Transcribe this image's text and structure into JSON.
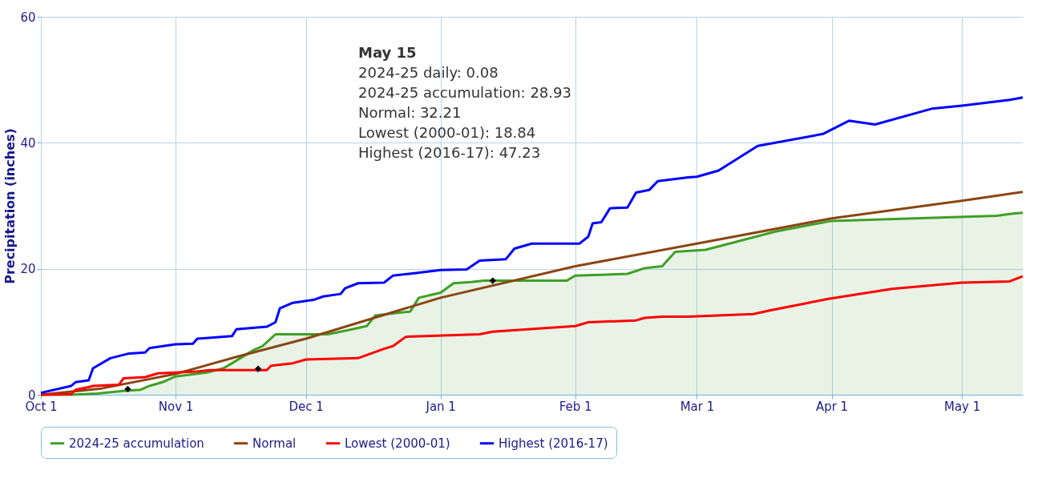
{
  "chart_data": {
    "type": "line",
    "ylabel": "Precipitation (inches)",
    "xlim": [
      "2024-10-01",
      "2025-05-15"
    ],
    "xticks": [
      {
        "value": "2024-10-01",
        "label": "Oct 1"
      },
      {
        "value": "2024-11-01",
        "label": "Nov 1"
      },
      {
        "value": "2024-12-01",
        "label": "Dec 1"
      },
      {
        "value": "2025-01-01",
        "label": "Jan 1"
      },
      {
        "value": "2025-02-01",
        "label": "Feb 1"
      },
      {
        "value": "2025-03-01",
        "label": "Mar 1"
      },
      {
        "value": "2025-04-01",
        "label": "Apr 1"
      },
      {
        "value": "2025-05-01",
        "label": "May 1"
      }
    ],
    "ylim": [
      0,
      60
    ],
    "yticks": [
      0,
      20,
      40,
      60
    ],
    "grid": true,
    "legend": "bottom",
    "marker": "none",
    "annotations": [
      "May 15",
      "2024-25 daily: 0.08",
      "2024-25 accumulation: 28.93",
      "Normal: 32.21",
      "Lowest (2000-01): 18.84",
      "Highest (2016-17): 47.23"
    ],
    "series": [
      {
        "name": "2024-25 accumulation",
        "type": "area",
        "color": "#3f9f26",
        "x": [
          "2024-10-01",
          "2024-10-08",
          "2024-10-14",
          "2024-10-20",
          "2024-10-24",
          "2024-10-26",
          "2024-10-29",
          "2024-11-01",
          "2024-11-08",
          "2024-11-12",
          "2024-11-14",
          "2024-11-19",
          "2024-11-21",
          "2024-11-24",
          "2024-12-06",
          "2024-12-11",
          "2024-12-15",
          "2024-12-17",
          "2024-12-25",
          "2024-12-27",
          "2025-01-01",
          "2025-01-04",
          "2025-01-08",
          "2025-01-11",
          "2025-01-30",
          "2025-02-01",
          "2025-02-13",
          "2025-02-17",
          "2025-02-21",
          "2025-02-24",
          "2025-03-03",
          "2025-03-19",
          "2025-04-01",
          "2025-05-09",
          "2025-05-12",
          "2025-05-15"
        ],
        "values": [
          0,
          0,
          0.2,
          0.6,
          0.8,
          1.4,
          2.0,
          2.9,
          3.5,
          4.2,
          5.0,
          7.1,
          7.7,
          9.6,
          9.6,
          10.3,
          10.9,
          12.6,
          13.2,
          15.4,
          16.2,
          17.7,
          17.9,
          18.1,
          18.1,
          18.9,
          19.2,
          20.1,
          20.4,
          22.7,
          23.0,
          25.9,
          27.6,
          28.4,
          28.7,
          28.9
        ]
      },
      {
        "name": "Normal",
        "color": "#8b4513",
        "x": [
          "2024-10-01",
          "2024-10-15",
          "2024-11-01",
          "2024-11-15",
          "2024-12-01",
          "2025-01-01",
          "2025-02-01",
          "2025-03-01",
          "2025-04-01",
          "2025-05-01",
          "2025-05-15"
        ],
        "values": [
          0,
          1.0,
          3.3,
          6.0,
          8.9,
          15.4,
          20.4,
          24.0,
          28.0,
          30.8,
          32.2
        ]
      },
      {
        "name": "Lowest (2000-01)",
        "color": "#ff0000",
        "x": [
          "2024-10-01",
          "2024-10-08",
          "2024-10-09",
          "2024-10-12",
          "2024-10-13",
          "2024-10-19",
          "2024-10-20",
          "2024-10-25",
          "2024-10-28",
          "2024-11-06",
          "2024-11-09",
          "2024-11-22",
          "2024-11-23",
          "2024-11-28",
          "2024-12-01",
          "2024-12-13",
          "2024-12-19",
          "2024-12-21",
          "2024-12-24",
          "2025-01-10",
          "2025-01-13",
          "2025-02-01",
          "2025-02-04",
          "2025-02-15",
          "2025-02-17",
          "2025-02-21",
          "2025-02-27",
          "2025-03-14",
          "2025-03-18",
          "2025-03-26",
          "2025-03-31",
          "2025-04-15",
          "2025-05-01",
          "2025-05-07",
          "2025-05-12",
          "2025-05-15"
        ],
        "values": [
          0,
          0.1,
          0.8,
          1.2,
          1.4,
          1.6,
          2.6,
          2.8,
          3.4,
          3.7,
          3.9,
          3.9,
          4.6,
          5.0,
          5.6,
          5.8,
          7.3,
          7.7,
          9.2,
          9.6,
          10.0,
          10.9,
          11.5,
          11.8,
          12.2,
          12.4,
          12.4,
          12.8,
          13.4,
          14.5,
          15.2,
          16.8,
          17.8,
          17.9,
          18.0,
          18.8
        ]
      },
      {
        "name": "Highest (2016-17)",
        "color": "#0000ff",
        "x": [
          "2024-10-01",
          "2024-10-08",
          "2024-10-09",
          "2024-10-12",
          "2024-10-13",
          "2024-10-17",
          "2024-10-21",
          "2024-10-25",
          "2024-10-26",
          "2024-11-01",
          "2024-11-05",
          "2024-11-06",
          "2024-11-14",
          "2024-11-15",
          "2024-11-22",
          "2024-11-24",
          "2024-11-25",
          "2024-11-28",
          "2024-12-03",
          "2024-12-05",
          "2024-12-09",
          "2024-12-10",
          "2024-12-13",
          "2024-12-19",
          "2024-12-21",
          "2024-12-26",
          "2025-01-01",
          "2025-01-07",
          "2025-01-10",
          "2025-01-16",
          "2025-01-18",
          "2025-01-22",
          "2025-02-02",
          "2025-02-04",
          "2025-02-05",
          "2025-02-07",
          "2025-02-09",
          "2025-02-13",
          "2025-02-15",
          "2025-02-18",
          "2025-02-20",
          "2025-02-27",
          "2025-03-01",
          "2025-03-06",
          "2025-03-15",
          "2025-03-30",
          "2025-04-05",
          "2025-04-11",
          "2025-04-24",
          "2025-05-01",
          "2025-05-12",
          "2025-05-15"
        ],
        "values": [
          0.3,
          1.4,
          2.0,
          2.3,
          4.2,
          5.8,
          6.5,
          6.7,
          7.4,
          8.0,
          8.1,
          8.9,
          9.3,
          10.4,
          10.8,
          11.5,
          13.7,
          14.6,
          15.1,
          15.6,
          16.0,
          16.9,
          17.7,
          17.8,
          18.9,
          19.3,
          19.8,
          19.9,
          21.3,
          21.5,
          23.2,
          24.0,
          24.0,
          25.1,
          27.2,
          27.4,
          29.6,
          29.7,
          32.1,
          32.5,
          33.9,
          34.5,
          34.6,
          35.6,
          39.5,
          41.4,
          43.5,
          42.9,
          45.4,
          45.9,
          46.8,
          47.2
        ]
      },
      {
        "type": "scatter",
        "marker": "diamond",
        "color": "#000000",
        "x": [
          "2024-10-21",
          "2024-11-20",
          "2025-01-13"
        ],
        "values": [
          0.9,
          4.1,
          18.1
        ]
      }
    ]
  }
}
